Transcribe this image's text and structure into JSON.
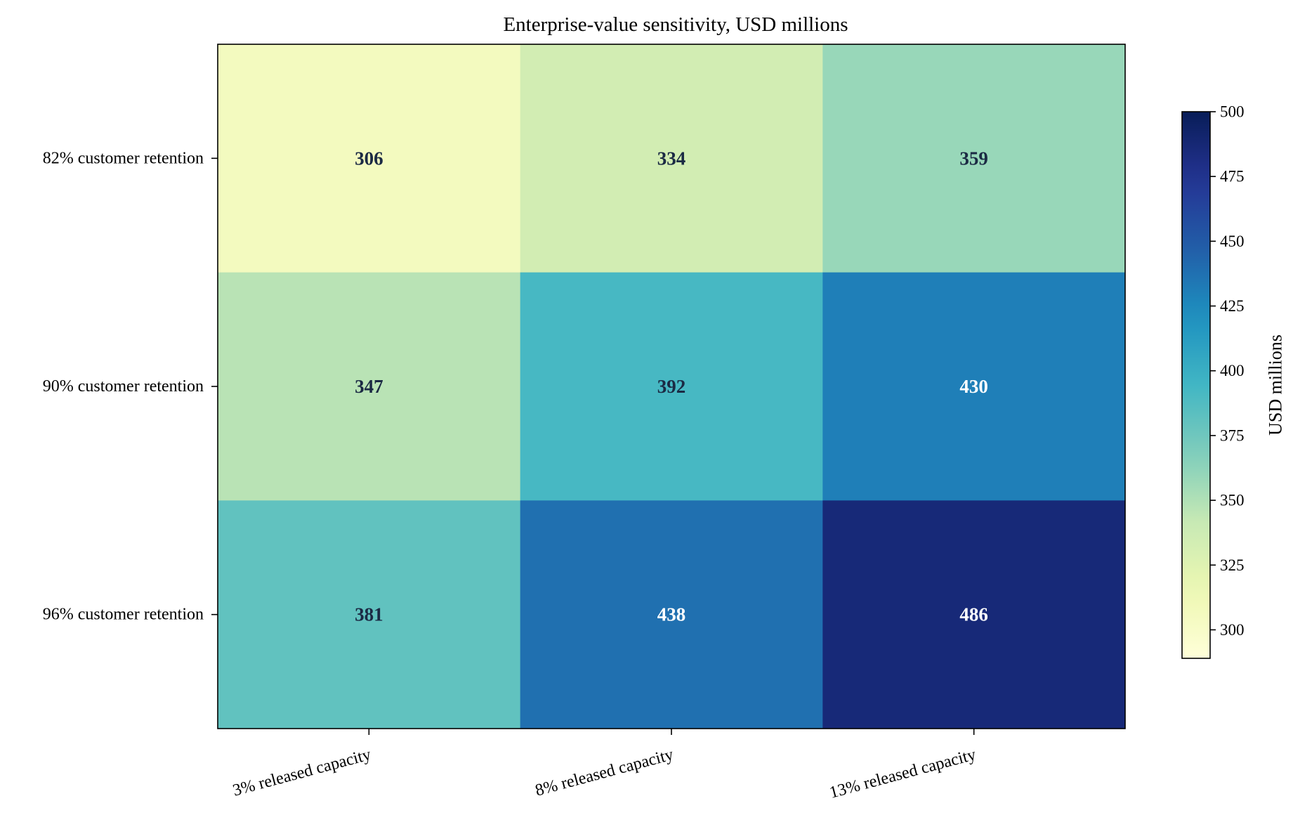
{
  "chart_data": {
    "type": "heatmap",
    "title": "Enterprise-value sensitivity, USD millions",
    "x_categories": [
      "3% released capacity",
      "8% released capacity",
      "13% released capacity"
    ],
    "y_categories": [
      "82% customer retention",
      "90% customer retention",
      "96% customer retention"
    ],
    "values": [
      [
        306,
        334,
        359
      ],
      [
        347,
        392,
        430
      ],
      [
        381,
        438,
        486
      ]
    ],
    "colorbar": {
      "label": "USD millions",
      "range": [
        289,
        500
      ],
      "ticks": [
        300,
        325,
        350,
        375,
        400,
        425,
        450,
        475,
        500
      ],
      "colormap": "YlGnBu"
    },
    "colors": {
      "text_light": "#ffffff",
      "text_dark": "#1b2a44"
    }
  }
}
